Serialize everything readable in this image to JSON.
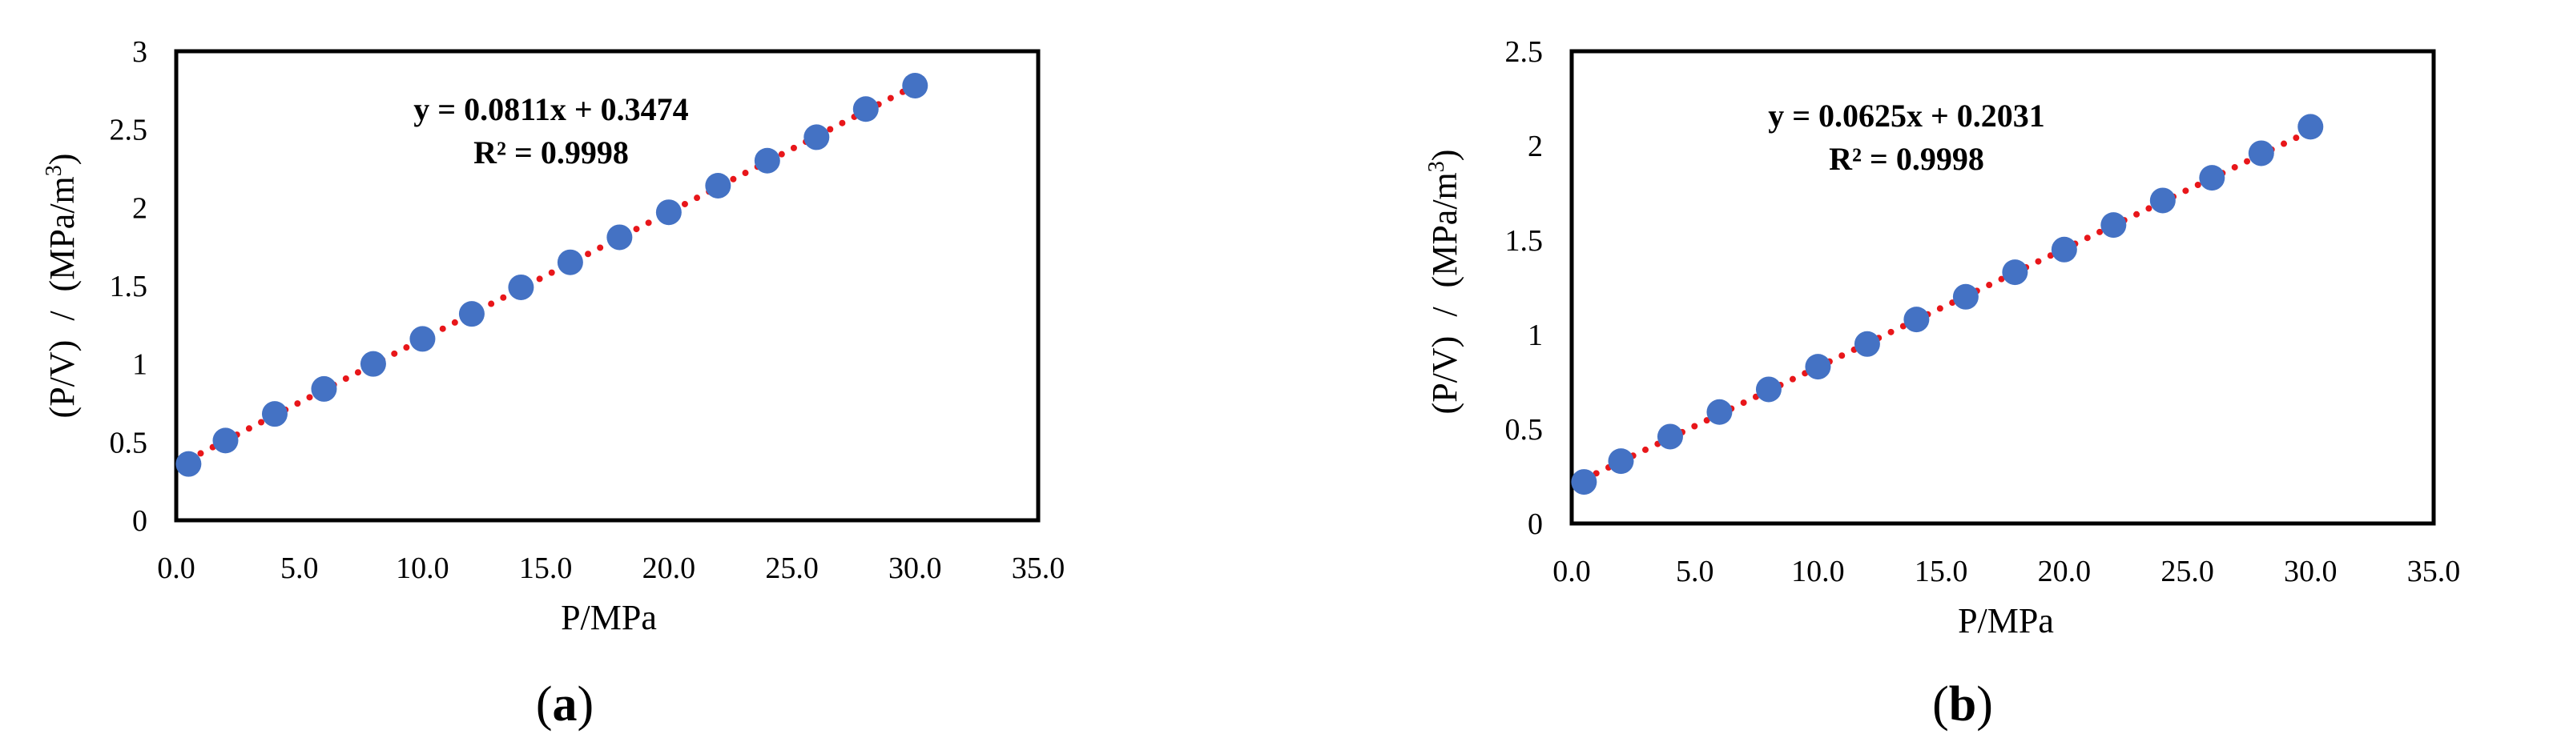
{
  "chart_data": [
    {
      "type": "scatter",
      "panel": "a",
      "xlabel": "P/MPa",
      "ylabel_parts": [
        "(P/V)",
        "/",
        "(MPa/m",
        "3",
        ")"
      ],
      "xlim": [
        0,
        35
      ],
      "ylim": [
        0,
        3
      ],
      "x_ticks": [
        "0.0",
        "5.0",
        "10.0",
        "15.0",
        "20.0",
        "25.0",
        "30.0",
        "35.0"
      ],
      "y_ticks": [
        "0",
        "0.5",
        "1",
        "1.5",
        "2",
        "2.5",
        "3"
      ],
      "equation": "y = 0.0811x + 0.3474",
      "r_squared": "R² = 0.9998",
      "trendline": {
        "slope": 0.0811,
        "intercept": 0.3474,
        "style": "dotted",
        "color": "#e8161a"
      },
      "marker_color": "#4472c4",
      "x": [
        0.5,
        2,
        4,
        6,
        8,
        10,
        12,
        14,
        16,
        18,
        20,
        22,
        24,
        26,
        28,
        30
      ],
      "y": [
        0.36,
        0.51,
        0.68,
        0.84,
        1.0,
        1.16,
        1.32,
        1.49,
        1.65,
        1.81,
        1.97,
        2.14,
        2.3,
        2.45,
        2.63,
        2.78
      ]
    },
    {
      "type": "scatter",
      "panel": "b",
      "xlabel": "P/MPa",
      "ylabel_parts": [
        "(P/V)",
        "/",
        "(MPa/m",
        "3",
        ")"
      ],
      "xlim": [
        0,
        35
      ],
      "ylim": [
        0,
        2.5
      ],
      "x_ticks": [
        "0.0",
        "5.0",
        "10.0",
        "15.0",
        "20.0",
        "25.0",
        "30.0",
        "35.0"
      ],
      "y_ticks": [
        "0",
        "0.5",
        "1",
        "1.5",
        "2",
        "2.5"
      ],
      "equation": "y = 0.0625x + 0.2031",
      "r_squared": "R² = 0.9998",
      "trendline": {
        "slope": 0.0625,
        "intercept": 0.2031,
        "style": "dotted",
        "color": "#e8161a"
      },
      "marker_color": "#4472c4",
      "x": [
        0.5,
        2,
        4,
        6,
        8,
        10,
        12,
        14,
        16,
        18,
        20,
        22,
        24,
        26,
        28,
        30
      ],
      "y": [
        0.22,
        0.33,
        0.46,
        0.59,
        0.71,
        0.83,
        0.95,
        1.08,
        1.2,
        1.33,
        1.45,
        1.58,
        1.71,
        1.83,
        1.96,
        2.1
      ]
    }
  ],
  "labels": {
    "a": {
      "open": "(",
      "letter": "a",
      "close": ")"
    },
    "b": {
      "open": "(",
      "letter": "b",
      "close": ")"
    }
  }
}
